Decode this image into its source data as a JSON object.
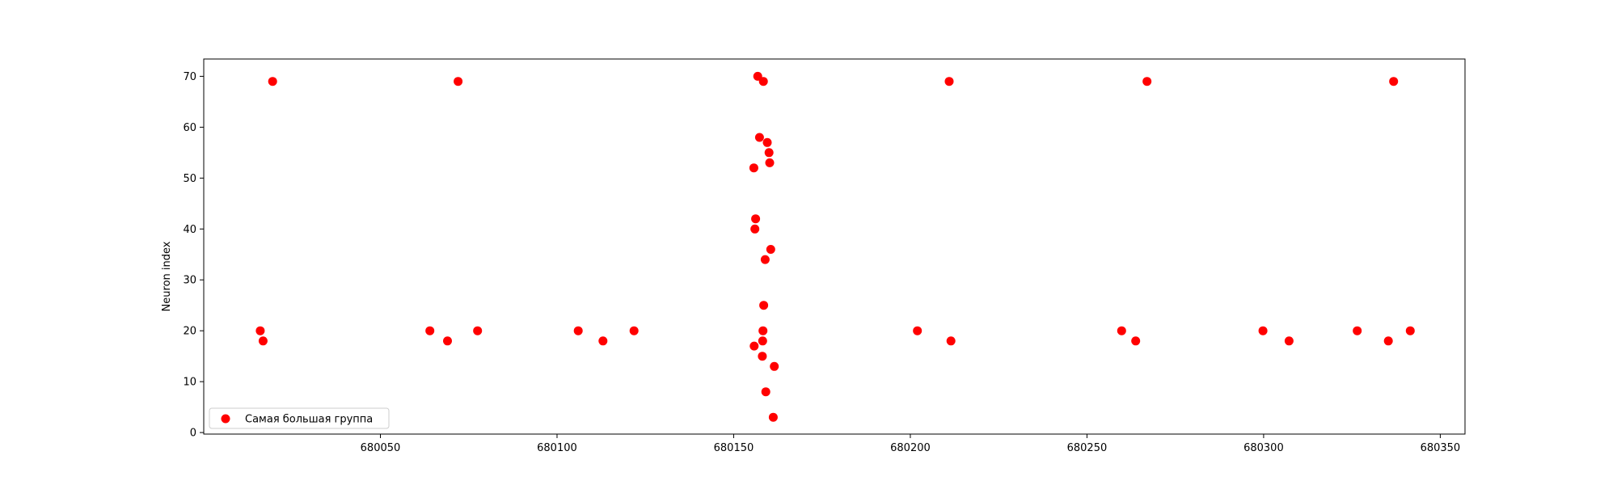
{
  "chart_data": {
    "type": "scatter",
    "title": "",
    "xlabel": "",
    "ylabel": "Neuron index",
    "xlim": [
      680000,
      680357
    ],
    "ylim": [
      -0.3,
      73.4
    ],
    "x_ticks": [
      {
        "value": 680050,
        "label": "680050"
      },
      {
        "value": 680100,
        "label": "680100"
      },
      {
        "value": 680150,
        "label": "680150"
      },
      {
        "value": 680200,
        "label": "680200"
      },
      {
        "value": 680250,
        "label": "680250"
      },
      {
        "value": 680300,
        "label": "680300"
      },
      {
        "value": 680350,
        "label": "680350"
      }
    ],
    "y_ticks": [
      {
        "value": 0,
        "label": "0"
      },
      {
        "value": 10,
        "label": "10"
      },
      {
        "value": 20,
        "label": "20"
      },
      {
        "value": 30,
        "label": "30"
      },
      {
        "value": 40,
        "label": "40"
      },
      {
        "value": 50,
        "label": "50"
      },
      {
        "value": 60,
        "label": "60"
      },
      {
        "value": 70,
        "label": "70"
      }
    ],
    "grid": false,
    "legend_position": "lower-left",
    "series": [
      {
        "name": "Самая большая группа",
        "color": "#ff0000",
        "points": [
          {
            "x": 680016.0,
            "y": 20
          },
          {
            "x": 680016.8,
            "y": 18
          },
          {
            "x": 680019.5,
            "y": 69
          },
          {
            "x": 680064.0,
            "y": 20
          },
          {
            "x": 680069.0,
            "y": 18
          },
          {
            "x": 680072.0,
            "y": 69
          },
          {
            "x": 680077.5,
            "y": 20
          },
          {
            "x": 680106.0,
            "y": 20
          },
          {
            "x": 680113.0,
            "y": 18
          },
          {
            "x": 680121.8,
            "y": 20
          },
          {
            "x": 680155.7,
            "y": 52
          },
          {
            "x": 680155.8,
            "y": 17
          },
          {
            "x": 680156.0,
            "y": 40
          },
          {
            "x": 680156.2,
            "y": 42
          },
          {
            "x": 680156.8,
            "y": 70
          },
          {
            "x": 680157.3,
            "y": 58
          },
          {
            "x": 680158.1,
            "y": 15
          },
          {
            "x": 680158.2,
            "y": 18
          },
          {
            "x": 680158.3,
            "y": 20
          },
          {
            "x": 680158.4,
            "y": 69
          },
          {
            "x": 680158.5,
            "y": 25
          },
          {
            "x": 680158.9,
            "y": 34
          },
          {
            "x": 680159.1,
            "y": 8
          },
          {
            "x": 680159.5,
            "y": 57
          },
          {
            "x": 680160.0,
            "y": 55
          },
          {
            "x": 680160.2,
            "y": 53
          },
          {
            "x": 680160.5,
            "y": 36
          },
          {
            "x": 680161.2,
            "y": 3
          },
          {
            "x": 680161.5,
            "y": 13
          },
          {
            "x": 680202.0,
            "y": 20
          },
          {
            "x": 680211.0,
            "y": 69
          },
          {
            "x": 680211.5,
            "y": 18
          },
          {
            "x": 680259.8,
            "y": 20
          },
          {
            "x": 680263.8,
            "y": 18
          },
          {
            "x": 680267.0,
            "y": 69
          },
          {
            "x": 680299.8,
            "y": 20
          },
          {
            "x": 680307.2,
            "y": 18
          },
          {
            "x": 680326.5,
            "y": 20
          },
          {
            "x": 680335.3,
            "y": 18
          },
          {
            "x": 680336.8,
            "y": 69
          },
          {
            "x": 680341.5,
            "y": 20
          }
        ]
      }
    ]
  }
}
